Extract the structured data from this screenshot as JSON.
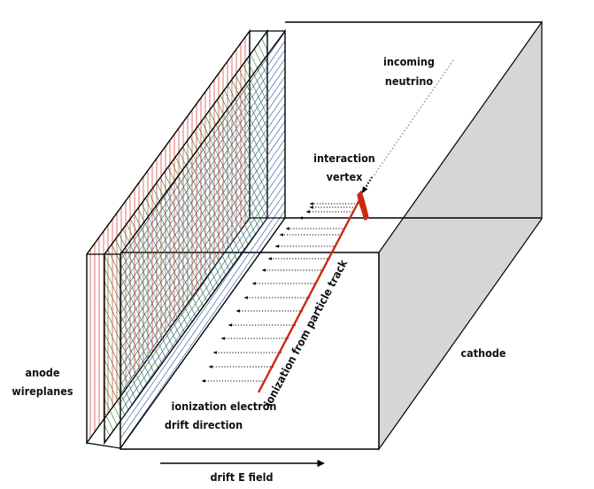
{
  "labels": {
    "incoming_line1": "incoming",
    "incoming_line2": "neutrino",
    "vertex_line1": "interaction",
    "vertex_line2": "vertex",
    "cathode": "cathode",
    "anode_line1": "anode",
    "anode_line2": "wireplanes",
    "drift_line1": "ionization electron",
    "drift_line2": "drift direction",
    "track": "ionization from particle track",
    "efield": "drift E field"
  },
  "colors": {
    "outline": "#000000",
    "cathode_face": "#d6d6d6",
    "track": "#cc2a10",
    "plane1_wires": "#d43a2a",
    "plane2_wires": "#3f8f3a",
    "plane3_wires": "#2b4f9c",
    "neutrino_dots": "#9a9a9a"
  }
}
